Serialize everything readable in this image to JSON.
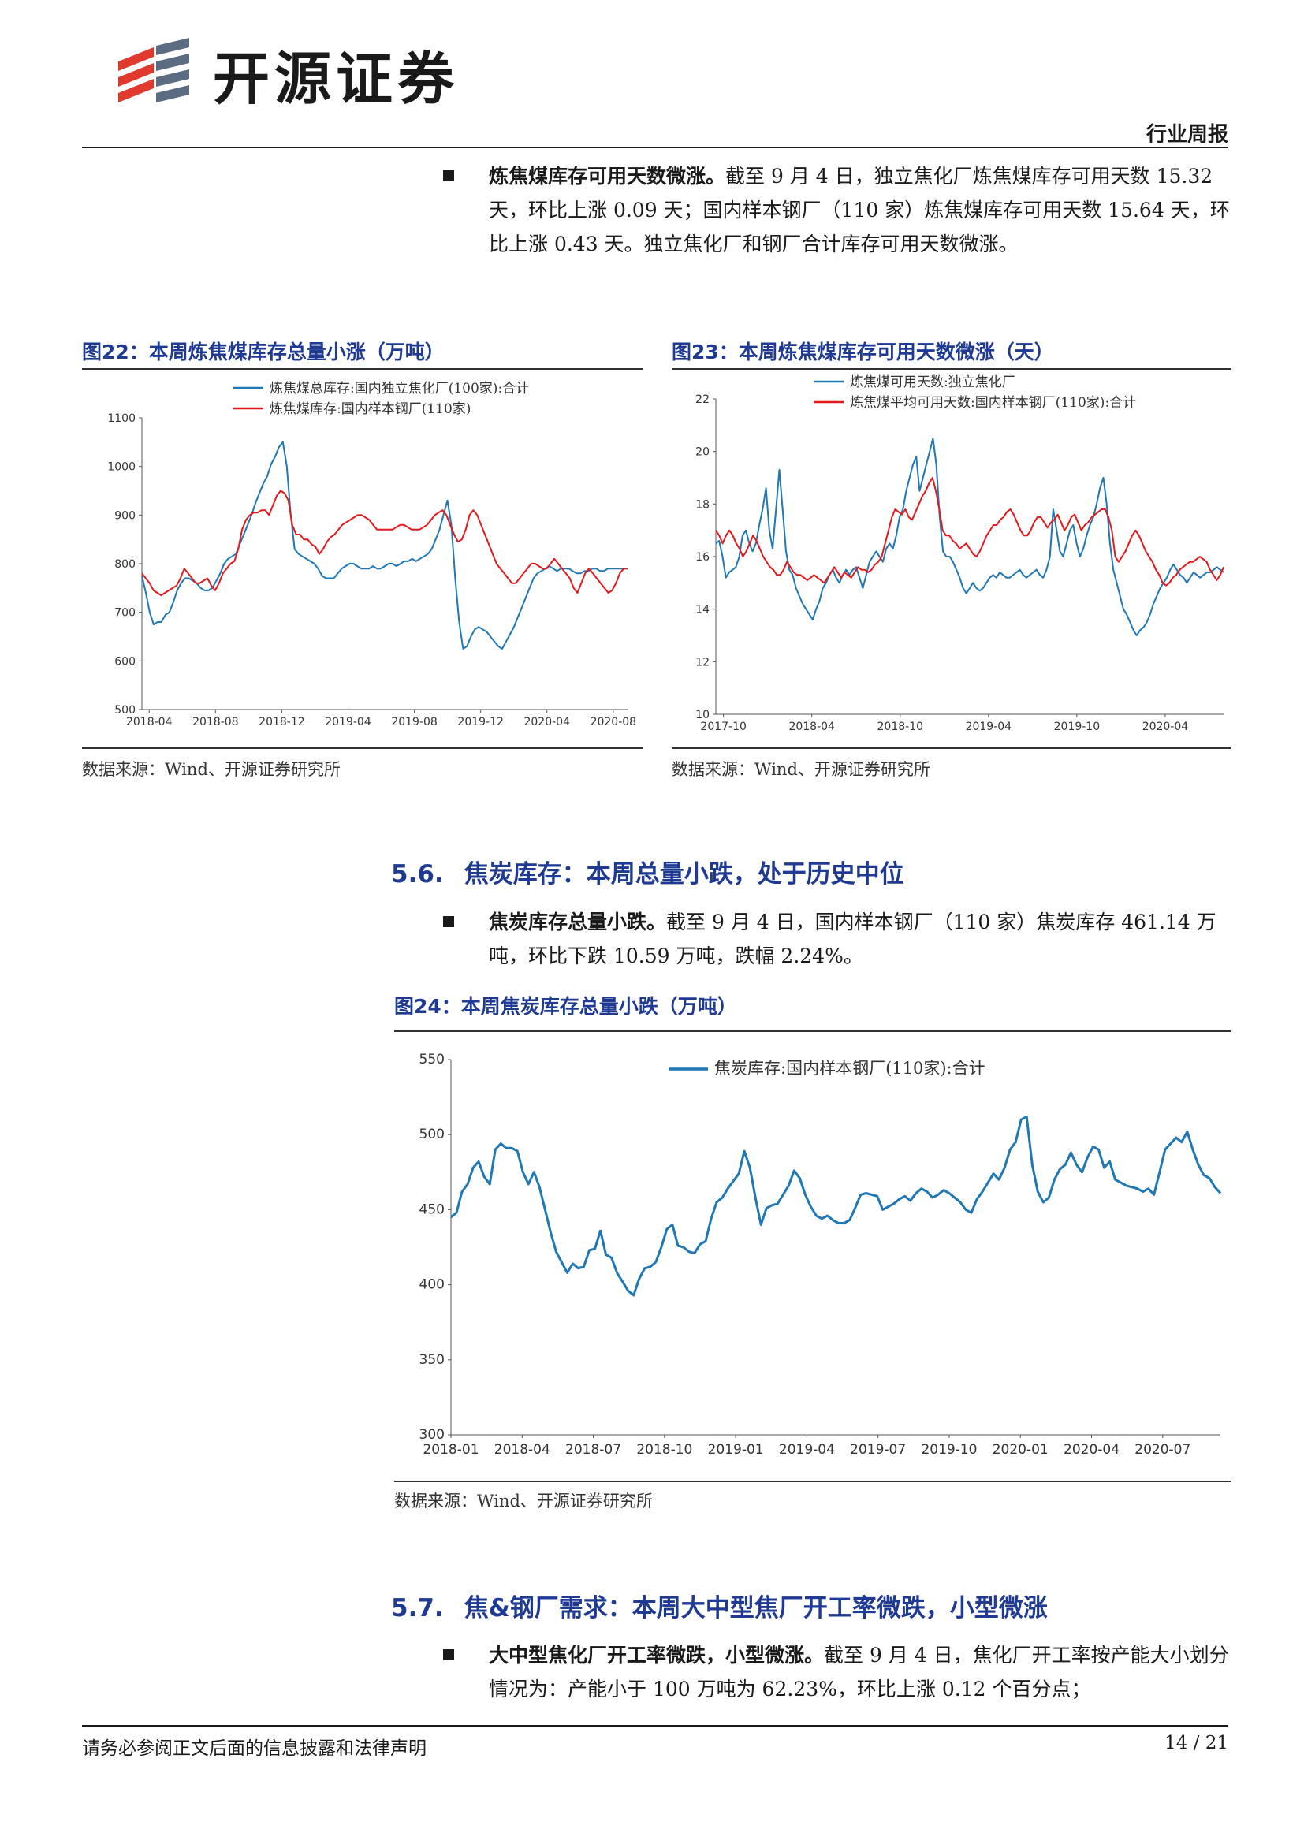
{
  "header": {
    "brand": "开源证券",
    "report_type": "行业周报"
  },
  "para1": {
    "lead": "炼焦煤库存可用天数微涨。",
    "text": "截至 9 月 4 日，独立焦化厂炼焦煤库存可用天数 15.32 天，环比上涨 0.09 天；国内样本钢厂（110 家）炼焦煤库存可用天数 15.64 天，环比上涨 0.43 天。独立焦化厂和钢厂合计库存可用天数微涨。"
  },
  "fig22": {
    "title": "图22：本周炼焦煤库存总量小涨（万吨）",
    "source": "数据来源：Wind、开源证券研究所"
  },
  "fig23": {
    "title": "图23：本周炼焦煤库存可用天数微涨（天）",
    "source": "数据来源：Wind、开源证券研究所"
  },
  "section56": {
    "num": "5.6.",
    "title": "焦炭库存：本周总量小跌，处于历史中位"
  },
  "para2": {
    "lead": "焦炭库存总量小跌。",
    "text": "截至 9 月 4 日，国内样本钢厂（110 家）焦炭库存 461.14 万吨，环比下跌 10.59 万吨，跌幅 2.24%。"
  },
  "fig24": {
    "title": "图24：本周焦炭库存总量小跌（万吨）",
    "source": "数据来源：Wind、开源证券研究所"
  },
  "section57": {
    "num": "5.7.",
    "title": "焦&钢厂需求：本周大中型焦厂开工率微跌，小型微涨"
  },
  "para3": {
    "lead": "大中型焦化厂开工率微跌，小型微涨。",
    "text": "截至 9 月 4 日，焦化厂开工率按产能大小划分情况为：产能小于 100 万吨为 62.23%，环比上涨 0.12 个百分点；"
  },
  "footer": {
    "disclaimer": "请务必参阅正文后面的信息披露和法律声明",
    "page": "14 / 21"
  },
  "chart_data": [
    {
      "type": "line",
      "title": "",
      "x_ticks": [
        "2018-04",
        "2018-08",
        "2018-12",
        "2019-04",
        "2019-08",
        "2019-12",
        "2020-04",
        "2020-08"
      ],
      "ylim": [
        500,
        1100
      ],
      "y_ticks": [
        500,
        600,
        700,
        800,
        900,
        1000,
        1100
      ],
      "x_range": [
        0,
        126
      ],
      "series": [
        {
          "name": "炼焦煤总库存:国内独立焦化厂(100家):合计",
          "color": "#1f77b4",
          "values": [
            775,
            740,
            700,
            675,
            680,
            680,
            695,
            700,
            720,
            745,
            760,
            770,
            770,
            765,
            760,
            750,
            745,
            745,
            750,
            765,
            780,
            800,
            810,
            815,
            820,
            840,
            860,
            880,
            900,
            925,
            945,
            965,
            980,
            1005,
            1020,
            1040,
            1050,
            1000,
            900,
            830,
            820,
            815,
            810,
            805,
            800,
            790,
            775,
            770,
            770,
            770,
            780,
            790,
            795,
            800,
            800,
            795,
            790,
            790,
            790,
            795,
            790,
            790,
            795,
            800,
            800,
            795,
            800,
            805,
            805,
            810,
            805,
            810,
            815,
            820,
            830,
            850,
            870,
            900,
            930,
            880,
            770,
            680,
            625,
            630,
            650,
            665,
            670,
            665,
            660,
            650,
            640,
            630,
            625,
            640,
            655,
            670,
            690,
            710,
            730,
            750,
            770,
            780,
            785,
            790,
            795,
            790,
            785,
            790,
            790,
            790,
            785,
            780,
            780,
            785,
            785,
            790,
            790,
            785,
            785,
            790,
            790,
            790,
            790,
            790,
            790
          ]
        },
        {
          "name": "炼焦煤库存:国内样本钢厂(110家)",
          "color": "#e3191c",
          "values": [
            780,
            770,
            760,
            745,
            740,
            735,
            740,
            745,
            750,
            755,
            770,
            790,
            780,
            770,
            760,
            760,
            765,
            770,
            755,
            745,
            760,
            780,
            790,
            800,
            805,
            830,
            870,
            890,
            900,
            905,
            905,
            910,
            910,
            900,
            920,
            940,
            950,
            945,
            930,
            880,
            860,
            860,
            850,
            850,
            840,
            835,
            820,
            830,
            845,
            855,
            860,
            870,
            880,
            885,
            890,
            895,
            900,
            900,
            895,
            890,
            880,
            870,
            870,
            870,
            870,
            870,
            875,
            880,
            880,
            875,
            870,
            870,
            870,
            875,
            880,
            890,
            900,
            905,
            910,
            900,
            880,
            860,
            845,
            850,
            870,
            900,
            910,
            900,
            880,
            860,
            840,
            820,
            800,
            790,
            780,
            770,
            760,
            760,
            770,
            780,
            790,
            800,
            800,
            795,
            790,
            790,
            800,
            810,
            800,
            790,
            780,
            770,
            750,
            740,
            760,
            780,
            790,
            780,
            770,
            760,
            750,
            740,
            745,
            760,
            780,
            790,
            790
          ]
        }
      ]
    },
    {
      "type": "line",
      "title": "",
      "x_ticks": [
        "2017-10",
        "2018-04",
        "2018-10",
        "2019-04",
        "2019-10",
        "2020-04"
      ],
      "ylim": [
        10,
        22
      ],
      "y_ticks": [
        10,
        12,
        14,
        16,
        18,
        20,
        22
      ],
      "x_range": [
        0,
        150
      ],
      "series": [
        {
          "name": "炼焦煤可用天数:独立焦化厂",
          "color": "#1f77b4",
          "values": [
            16.5,
            16.6,
            16.0,
            15.2,
            15.4,
            15.5,
            15.6,
            16.0,
            16.8,
            17.0,
            16.5,
            16.2,
            16.5,
            17.2,
            17.8,
            18.6,
            17.0,
            16.3,
            17.8,
            19.3,
            17.8,
            16.2,
            15.5,
            15.3,
            14.8,
            14.5,
            14.2,
            14.0,
            13.8,
            13.6,
            14.0,
            14.3,
            14.8,
            15.0,
            15.3,
            15.5,
            15.2,
            15.0,
            15.3,
            15.5,
            15.3,
            15.5,
            15.6,
            15.2,
            14.8,
            15.3,
            15.8,
            16.0,
            16.2,
            16.0,
            15.8,
            16.3,
            16.5,
            16.3,
            16.8,
            17.5,
            17.8,
            18.5,
            19.0,
            19.5,
            19.8,
            18.5,
            19.0,
            19.5,
            20.0,
            20.5,
            19.5,
            17.5,
            16.2,
            16.0,
            16.0,
            15.8,
            15.5,
            15.2,
            14.8,
            14.6,
            14.8,
            15.0,
            14.8,
            14.7,
            14.8,
            15.0,
            15.2,
            15.3,
            15.2,
            15.4,
            15.3,
            15.2,
            15.2,
            15.3,
            15.4,
            15.5,
            15.3,
            15.2,
            15.3,
            15.4,
            15.5,
            15.3,
            15.2,
            15.5,
            16.0,
            17.8,
            17.0,
            16.2,
            16.0,
            16.5,
            17.0,
            17.2,
            16.5,
            16.0,
            16.3,
            16.8,
            17.2,
            17.5,
            18.0,
            18.6,
            19.0,
            18.0,
            16.5,
            15.5,
            15.0,
            14.5,
            14.0,
            13.8,
            13.5,
            13.2,
            13.0,
            13.2,
            13.3,
            13.5,
            13.8,
            14.2,
            14.5,
            14.8,
            15.0,
            15.2,
            15.5,
            15.7,
            15.5,
            15.3,
            15.2,
            15.0,
            15.2,
            15.4,
            15.3,
            15.2,
            15.3,
            15.4,
            15.4,
            15.5,
            15.6,
            15.5,
            15.4
          ]
        },
        {
          "name": "炼焦煤平均可用天数:国内样本钢厂(110家):合计",
          "color": "#e3191c",
          "values": [
            17.0,
            16.8,
            16.5,
            16.8,
            17.0,
            16.8,
            16.5,
            16.3,
            16.0,
            16.2,
            16.5,
            16.8,
            16.6,
            16.3,
            16.0,
            15.8,
            15.6,
            15.5,
            15.3,
            15.3,
            15.5,
            15.8,
            15.6,
            15.4,
            15.3,
            15.3,
            15.2,
            15.1,
            15.2,
            15.3,
            15.2,
            15.1,
            15.0,
            15.2,
            15.4,
            15.6,
            15.4,
            15.2,
            15.4,
            15.3,
            15.2,
            15.4,
            15.6,
            15.5,
            15.5,
            15.4,
            15.5,
            15.7,
            15.8,
            16.0,
            16.5,
            17.0,
            17.5,
            17.8,
            17.7,
            17.6,
            17.8,
            17.5,
            17.4,
            17.7,
            18.0,
            18.3,
            18.5,
            18.8,
            19.0,
            18.5,
            17.8,
            17.0,
            16.8,
            16.8,
            16.6,
            16.5,
            16.3,
            16.4,
            16.5,
            16.3,
            16.1,
            16.0,
            16.2,
            16.5,
            16.8,
            17.0,
            17.2,
            17.2,
            17.4,
            17.5,
            17.7,
            17.8,
            17.6,
            17.3,
            17.0,
            16.8,
            16.8,
            17.0,
            17.3,
            17.5,
            17.5,
            17.3,
            17.1,
            17.3,
            17.4,
            17.6,
            17.3,
            17.0,
            17.2,
            17.5,
            17.6,
            17.3,
            17.0,
            17.2,
            17.3,
            17.5,
            17.6,
            17.7,
            17.8,
            17.8,
            17.5,
            17.0,
            16.0,
            15.8,
            16.0,
            16.2,
            16.5,
            16.8,
            17.0,
            16.8,
            16.5,
            16.2,
            16.0,
            15.8,
            15.5,
            15.3,
            15.0,
            14.9,
            15.0,
            15.2,
            15.3,
            15.5,
            15.6,
            15.7,
            15.8,
            15.8,
            15.9,
            16.0,
            15.9,
            15.8,
            15.5,
            15.3,
            15.1,
            15.3,
            15.6
          ]
        }
      ]
    },
    {
      "type": "line",
      "title": "",
      "x_ticks": [
        "2018-01",
        "2018-04",
        "2018-07",
        "2018-10",
        "2019-01",
        "2019-04",
        "2019-07",
        "2019-10",
        "2020-01",
        "2020-04",
        "2020-07"
      ],
      "ylim": [
        300,
        550
      ],
      "y_ticks": [
        300,
        350,
        400,
        450,
        500,
        550
      ],
      "x_range": [
        0,
        140
      ],
      "series": [
        {
          "name": "焦炭库存:国内样本钢厂(110家):合计",
          "color": "#1f77b4",
          "values": [
            445,
            448,
            462,
            467,
            478,
            482,
            472,
            467,
            490,
            494,
            491,
            491,
            489,
            475,
            467,
            475,
            465,
            450,
            435,
            422,
            415,
            408,
            414,
            411,
            412,
            423,
            424,
            436,
            420,
            418,
            408,
            402,
            396,
            393,
            404,
            411,
            412,
            415,
            425,
            437,
            440,
            426,
            425,
            422,
            421,
            427,
            429,
            444,
            455,
            458,
            464,
            469,
            474,
            489,
            478,
            458,
            440,
            451,
            453,
            454,
            460,
            466,
            476,
            471,
            460,
            452,
            446,
            444,
            446,
            443,
            441,
            441,
            443,
            451,
            460,
            461,
            460,
            459,
            450,
            452,
            454,
            457,
            459,
            456,
            461,
            464,
            462,
            458,
            460,
            463,
            461,
            458,
            455,
            450,
            448,
            457,
            462,
            468,
            474,
            470,
            478,
            490,
            495,
            510,
            512,
            480,
            462,
            455,
            458,
            470,
            477,
            480,
            488,
            480,
            475,
            485,
            492,
            490,
            478,
            482,
            470,
            468,
            466,
            465,
            464,
            462,
            464,
            460,
            475,
            490,
            494,
            498,
            495,
            502,
            490,
            480,
            473,
            471,
            465,
            461
          ]
        }
      ]
    }
  ]
}
